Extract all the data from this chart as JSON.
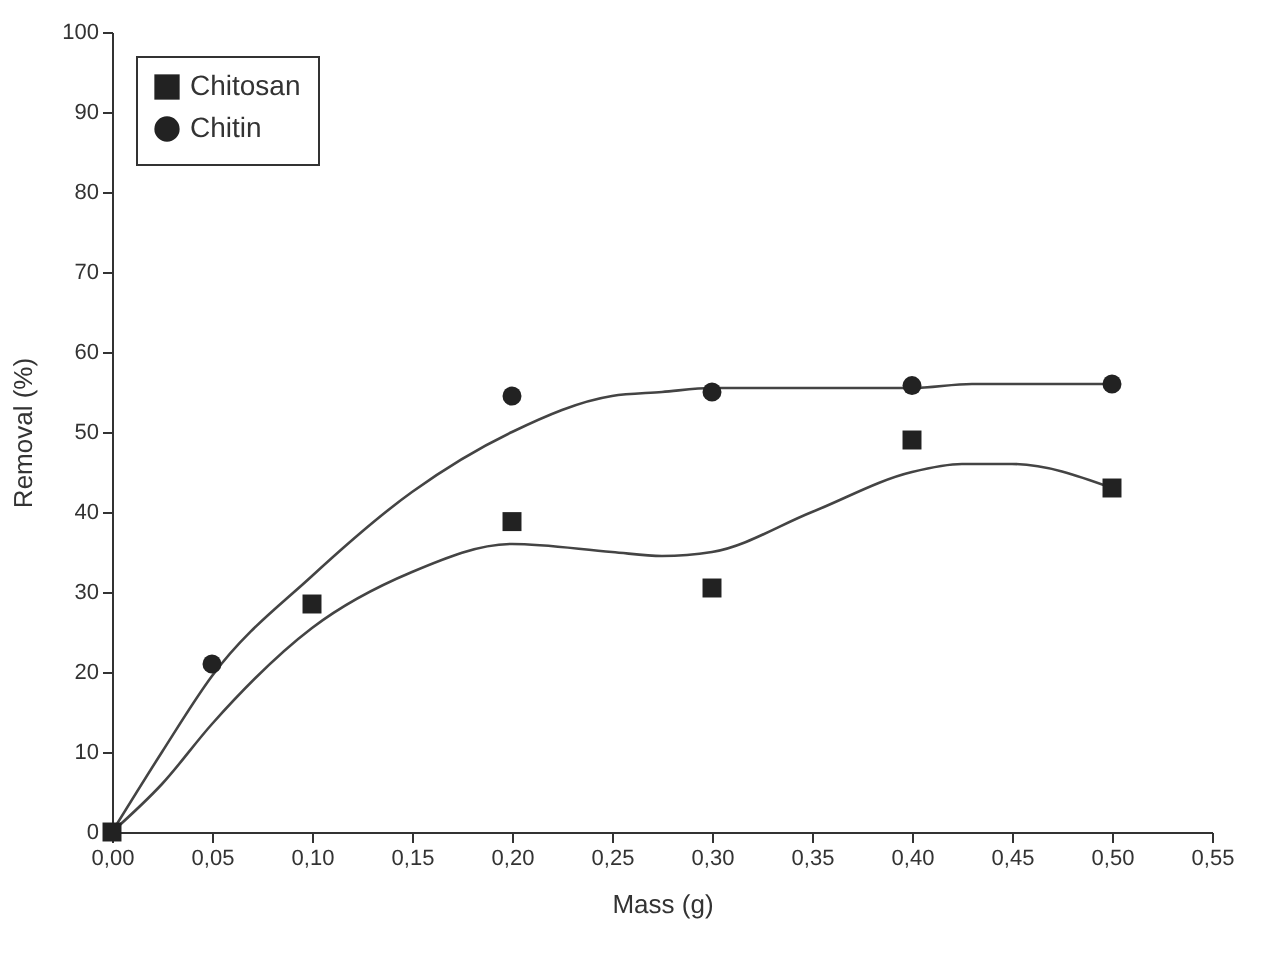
{
  "chart_data": {
    "type": "scatter",
    "xlabel": "Mass (g)",
    "ylabel": "Removal (%)",
    "xlim": [
      0,
      0.55
    ],
    "ylim": [
      0,
      100
    ],
    "xticks": [
      {
        "value": 0,
        "label": "0,00"
      },
      {
        "value": 0.05,
        "label": "0,05"
      },
      {
        "value": 0.1,
        "label": "0,10"
      },
      {
        "value": 0.15,
        "label": "0,15"
      },
      {
        "value": 0.2,
        "label": "0,20"
      },
      {
        "value": 0.25,
        "label": "0,25"
      },
      {
        "value": 0.3,
        "label": "0,30"
      },
      {
        "value": 0.35,
        "label": "0,35"
      },
      {
        "value": 0.4,
        "label": "0,40"
      },
      {
        "value": 0.45,
        "label": "0,45"
      },
      {
        "value": 0.5,
        "label": "0,50"
      },
      {
        "value": 0.55,
        "label": "0,55"
      }
    ],
    "yticks": [
      0,
      10,
      20,
      30,
      40,
      50,
      60,
      70,
      80,
      90,
      100
    ],
    "grid": false,
    "legend": "top left",
    "series": [
      {
        "type": "line",
        "marker": "none",
        "color": "#444444",
        "x": [
          0,
          0.025,
          0.05,
          0.1,
          0.15,
          0.2,
          0.25,
          0.275,
          0.3,
          0.35,
          0.4,
          0.425,
          0.45,
          0.5
        ],
        "values": [
          0,
          6,
          13.5,
          25.5,
          32.5,
          36,
          35,
          34.5,
          35,
          40,
          45,
          46,
          46,
          43
        ]
      },
      {
        "type": "line",
        "marker": "none",
        "color": "#444444",
        "x": [
          0,
          0.025,
          0.05,
          0.1,
          0.15,
          0.2,
          0.25,
          0.275,
          0.3,
          0.4,
          0.43,
          0.5
        ],
        "values": [
          0,
          10,
          19.5,
          32,
          42.5,
          50,
          54.5,
          55,
          55.5,
          55.5,
          56,
          56
        ]
      },
      {
        "name": "Chitin",
        "marker": "circle",
        "color": "#222222",
        "x": [
          0.05,
          0.2,
          0.3,
          0.4,
          0.5
        ],
        "values": [
          21,
          54.5,
          55,
          55.8,
          56
        ]
      },
      {
        "name": "Chitosan",
        "marker": "square",
        "color": "#222222",
        "x": [
          0,
          0.1,
          0.2,
          0.3,
          0.4,
          0.5
        ],
        "values": [
          0,
          28.5,
          38.8,
          30.5,
          49,
          43
        ]
      }
    ]
  }
}
